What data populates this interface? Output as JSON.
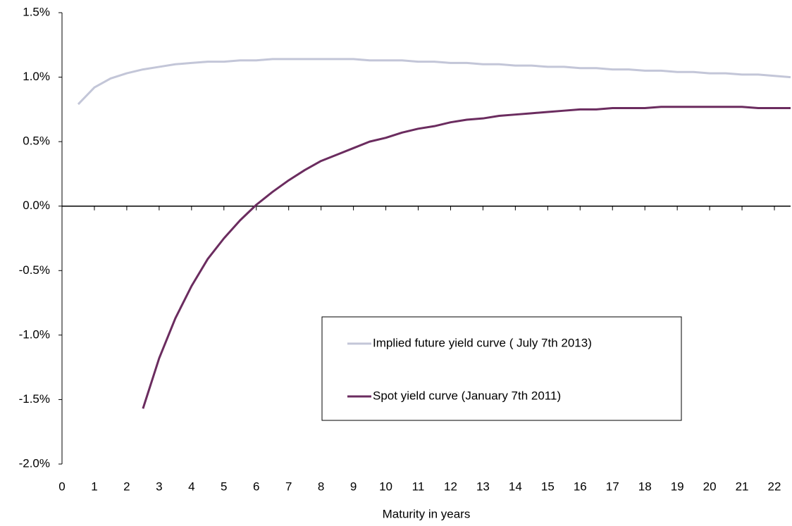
{
  "chart_data": {
    "type": "line",
    "x_label": "Maturity in years",
    "x": [
      0.5,
      1,
      1.5,
      2,
      2.5,
      3,
      3.5,
      4,
      4.5,
      5,
      5.5,
      6,
      6.5,
      7,
      7.5,
      8,
      8.5,
      9,
      9.5,
      10,
      10.5,
      11,
      11.5,
      12,
      12.5,
      13,
      13.5,
      14,
      14.5,
      15,
      15.5,
      16,
      16.5,
      17,
      17.5,
      18,
      18.5,
      19,
      19.5,
      20,
      20.5,
      21,
      21.5,
      22,
      22.5
    ],
    "series": [
      {
        "name": "Implied future yield curve ( July 7th 2013)",
        "color": "#c3c6d8",
        "values": [
          0.79,
          0.92,
          0.99,
          1.03,
          1.06,
          1.08,
          1.1,
          1.11,
          1.12,
          1.12,
          1.13,
          1.13,
          1.14,
          1.14,
          1.14,
          1.14,
          1.14,
          1.14,
          1.13,
          1.13,
          1.13,
          1.12,
          1.12,
          1.11,
          1.11,
          1.1,
          1.1,
          1.09,
          1.09,
          1.08,
          1.08,
          1.07,
          1.07,
          1.06,
          1.06,
          1.05,
          1.05,
          1.04,
          1.04,
          1.03,
          1.03,
          1.02,
          1.02,
          1.01,
          1.0
        ]
      },
      {
        "name": "Spot yield curve (January 7th 2011)",
        "color": "#6b2c5f",
        "values": [
          null,
          null,
          null,
          null,
          -1.57,
          -1.18,
          -0.87,
          -0.62,
          -0.41,
          -0.25,
          -0.11,
          0.01,
          0.11,
          0.2,
          0.28,
          0.35,
          0.4,
          0.45,
          0.5,
          0.53,
          0.57,
          0.6,
          0.62,
          0.65,
          0.67,
          0.68,
          0.7,
          0.71,
          0.72,
          0.73,
          0.74,
          0.75,
          0.75,
          0.76,
          0.76,
          0.76,
          0.77,
          0.77,
          0.77,
          0.77,
          0.77,
          0.77,
          0.76,
          0.76,
          0.76
        ]
      }
    ],
    "xlim": [
      0,
      22.5
    ],
    "xticks": [
      0,
      1,
      2,
      3,
      4,
      5,
      6,
      7,
      8,
      9,
      10,
      11,
      12,
      13,
      14,
      15,
      16,
      17,
      18,
      19,
      20,
      21,
      22
    ],
    "ylim": [
      -2,
      1.5
    ],
    "yticks": [
      {
        "value": -2,
        "label": "-2.0%"
      },
      {
        "value": -1.5,
        "label": "-1.5%"
      },
      {
        "value": -1,
        "label": "-1.0%"
      },
      {
        "value": -0.5,
        "label": "-0.5%"
      },
      {
        "value": 0,
        "label": "0.0%"
      },
      {
        "value": 0.5,
        "label": "0.5%"
      },
      {
        "value": 1,
        "label": "1.0%"
      },
      {
        "value": 1.5,
        "label": "1.5%"
      }
    ],
    "grid": false,
    "legend": "lower-right"
  }
}
